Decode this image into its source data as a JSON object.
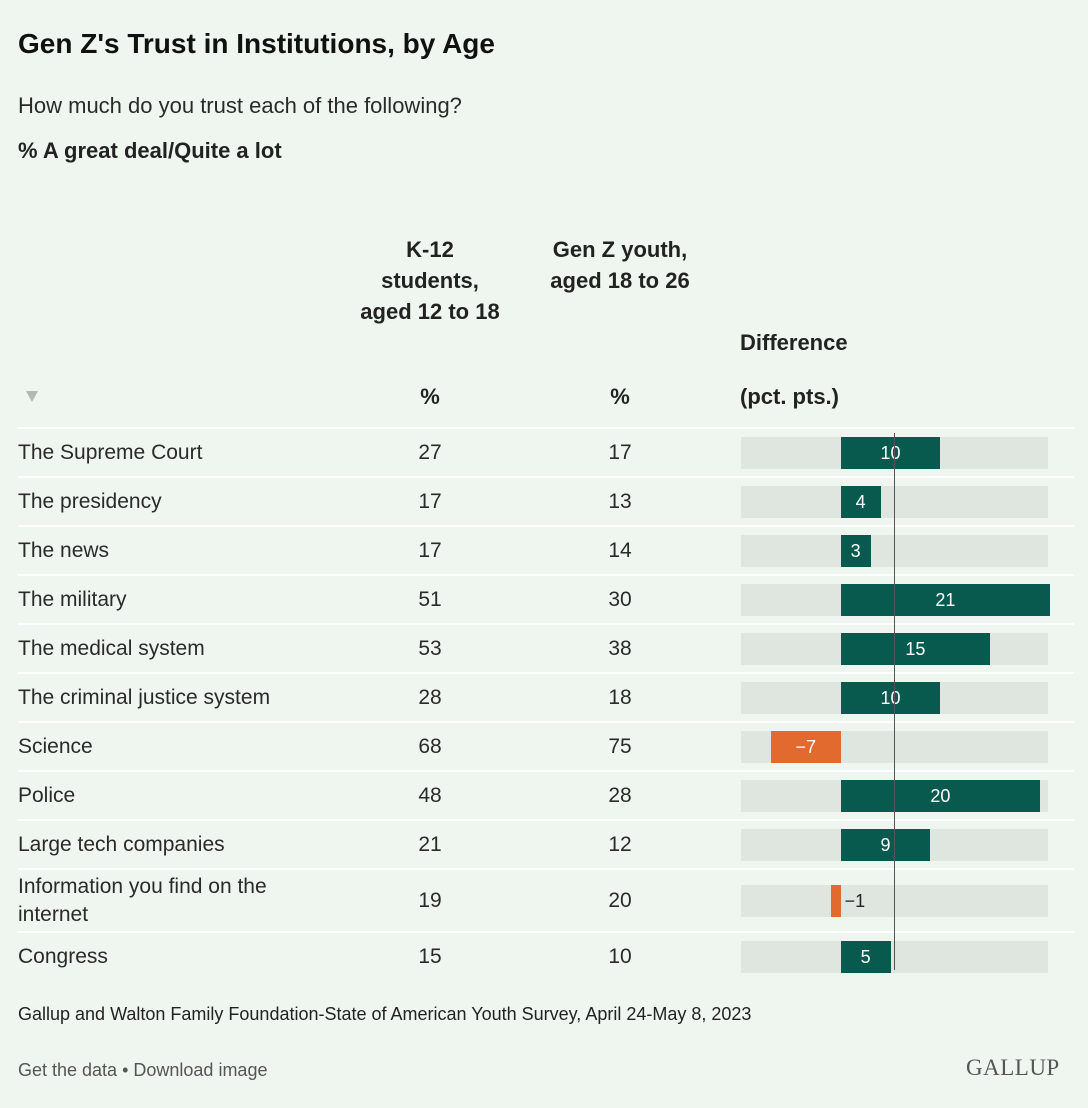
{
  "title": "Gen Z's Trust in Institutions, by Age",
  "subtitle": "How much do you trust each of the following?",
  "measure": "% A great deal/Quite a lot",
  "columns": {
    "k12": "K-12 students, aged 12 to 18",
    "genz": "Gen Z youth, aged 18 to 26",
    "diff": "Difference",
    "k12_unit": "%",
    "genz_unit": "%",
    "diff_unit": "(pct. pts.)"
  },
  "sort_icon": "triangle-down",
  "colors": {
    "positive": "#075a4d",
    "negative": "#e26a2e",
    "track": "#dfe5df"
  },
  "chart_data": {
    "type": "table",
    "diff_range": [
      -10,
      20.8
    ],
    "categories": [
      "The Supreme Court",
      "The presidency",
      "The news",
      "The military",
      "The medical system",
      "The criminal justice system",
      "Science",
      "Police",
      "Large tech companies",
      "Information you find on the internet",
      "Congress"
    ],
    "series": [
      {
        "name": "K-12 students, aged 12 to 18",
        "values": [
          27,
          17,
          17,
          51,
          53,
          28,
          68,
          48,
          21,
          19,
          15
        ]
      },
      {
        "name": "Gen Z youth, aged 18 to 26",
        "values": [
          17,
          13,
          14,
          30,
          38,
          18,
          75,
          28,
          12,
          20,
          10
        ]
      },
      {
        "name": "Difference",
        "values": [
          10,
          4,
          3,
          21,
          15,
          10,
          -7,
          20,
          9,
          -1,
          5
        ]
      }
    ],
    "diff_labels": [
      "10",
      "4",
      "3",
      "21",
      "15",
      "10",
      "−7",
      "20",
      "9",
      "−1",
      "5"
    ]
  },
  "source": "Gallup and Walton Family Foundation-State of American Youth Survey, April 24-May 8, 2023",
  "footer": {
    "get_data": "Get the data",
    "separator": " • ",
    "download": "Download image"
  },
  "brand": "GALLUP"
}
